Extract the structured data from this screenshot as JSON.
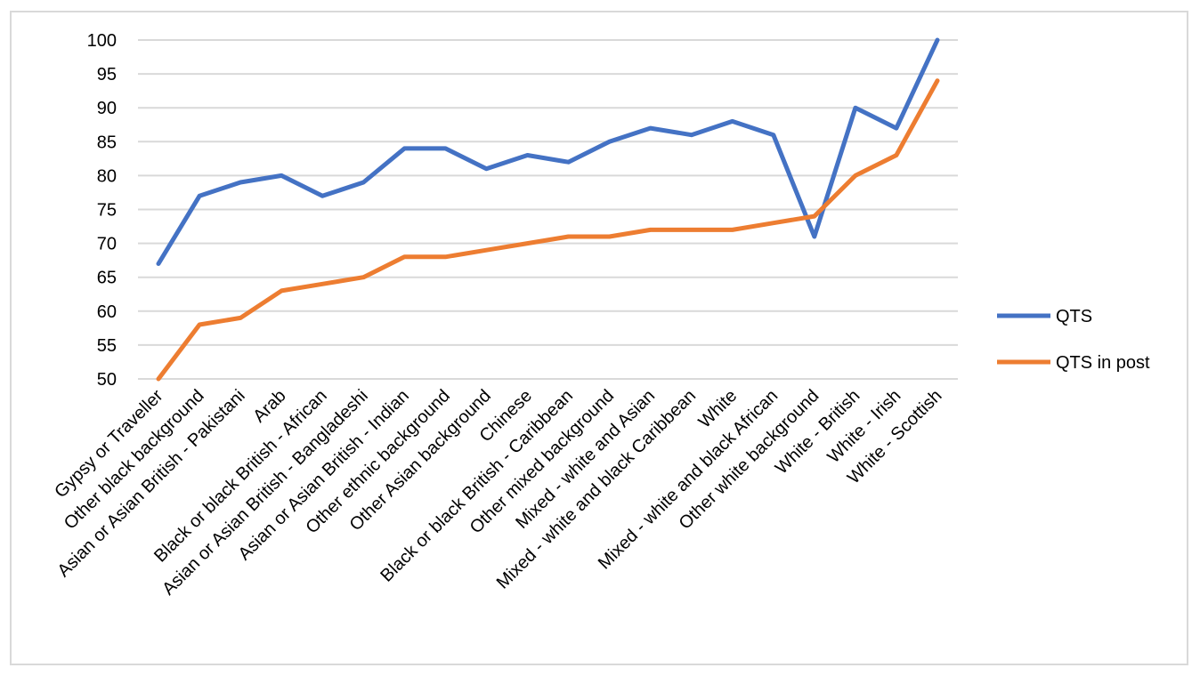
{
  "chart_data": {
    "type": "line",
    "categories": [
      "Gypsy or Traveller",
      "Other black background",
      "Asian or Asian British - Pakistani",
      "Arab",
      "Black or black British - African",
      "Asian or Asian British - Bangladeshi",
      "Asian or Asian British - Indian",
      "Other ethnic background",
      "Other Asian background",
      "Chinese",
      "Black or black British - Caribbean",
      "Other mixed background",
      "Mixed - white and Asian",
      "Mixed - white and black Caribbean",
      "White",
      "Mixed - white and black African",
      "Other white background",
      "White - British",
      "White - Irish",
      "White - Scottish"
    ],
    "series": [
      {
        "name": "QTS",
        "color": "#4472c4",
        "values": [
          67,
          77,
          79,
          80,
          77,
          79,
          84,
          84,
          81,
          83,
          82,
          85,
          87,
          86,
          88,
          86,
          71,
          90,
          87,
          100
        ]
      },
      {
        "name": "QTS in post",
        "color": "#ed7d31",
        "values": [
          50,
          58,
          59,
          63,
          64,
          65,
          68,
          68,
          69,
          70,
          71,
          71,
          72,
          72,
          72,
          73,
          74,
          80,
          83,
          94
        ]
      }
    ],
    "ylim": [
      50,
      100
    ],
    "yticks": [
      "50",
      "55",
      "60",
      "65",
      "70",
      "75",
      "80",
      "85",
      "90",
      "95",
      "100"
    ],
    "grid": true,
    "legend": "right",
    "title": "",
    "xlabel": "",
    "ylabel": ""
  }
}
